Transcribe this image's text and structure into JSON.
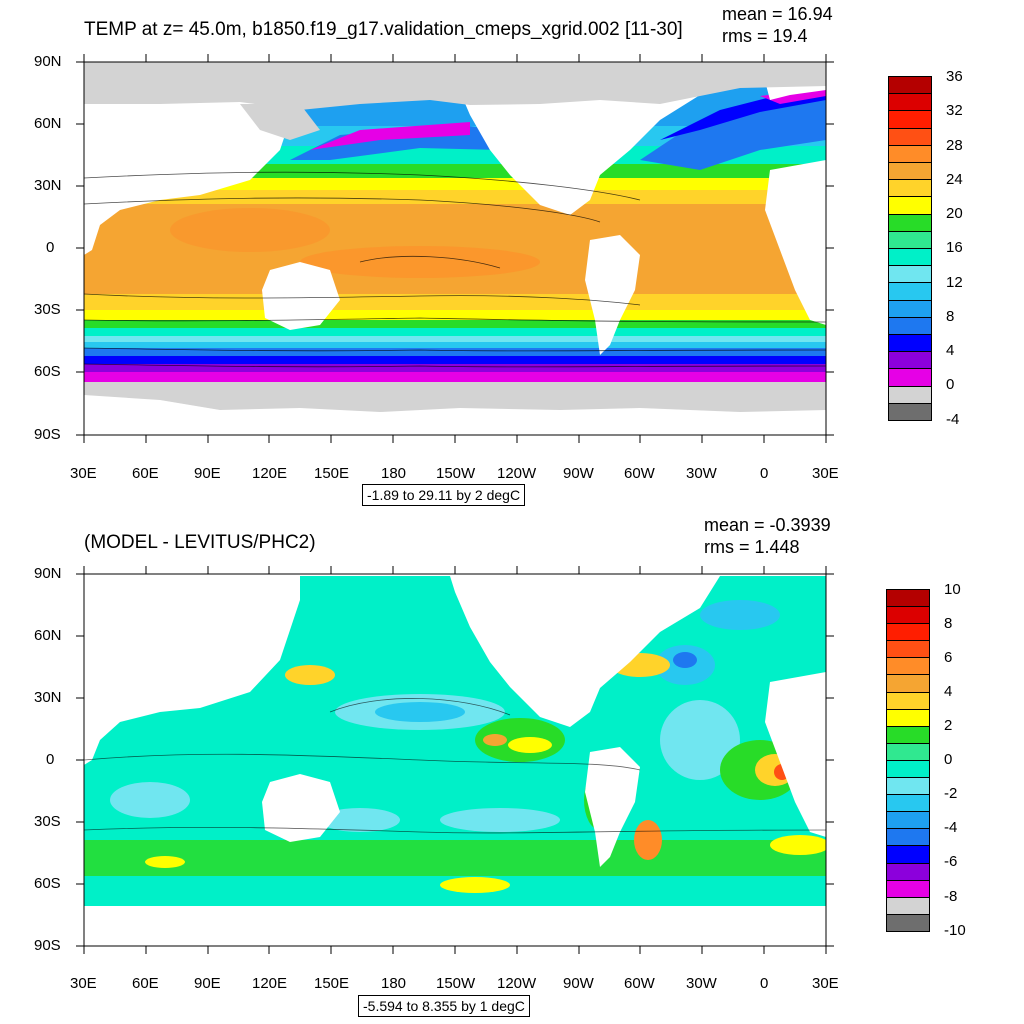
{
  "colors": {
    "land_mask": "#d3d3d3",
    "frame": "#000000",
    "temp_palette": [
      "#6e6e6e",
      "#d3d3d3",
      "#e600e6",
      "#8c00dc",
      "#0000ff",
      "#1e78f0",
      "#1ea0f0",
      "#28c8f0",
      "#70e6f0",
      "#00f0c8",
      "#30e890",
      "#28dc28",
      "#ffff00",
      "#ffd32a",
      "#f5a532",
      "#ff8c28",
      "#ff5014",
      "#ff1e00",
      "#dc0000",
      "#b40000"
    ],
    "diff_palette": [
      "#6e6e6e",
      "#d3d3d3",
      "#e600e6",
      "#8c00dc",
      "#0000ff",
      "#1e78f0",
      "#1ea0f0",
      "#28c8f0",
      "#70e6f0",
      "#00f0c8",
      "#30e890",
      "#28dc28",
      "#ffff00",
      "#ffd32a",
      "#f5a532",
      "#ff8c28",
      "#ff5014",
      "#ff1e00",
      "#dc0000",
      "#b40000"
    ]
  },
  "axes": {
    "lon_labels": [
      "30E",
      "60E",
      "90E",
      "120E",
      "150E",
      "180",
      "150W",
      "120W",
      "90W",
      "60W",
      "30W",
      "0",
      "30E"
    ],
    "lat_labels": [
      "90N",
      "60N",
      "30N",
      "0",
      "30S",
      "60S",
      "90S"
    ]
  },
  "panels": [
    {
      "title": "TEMP at z=  45.0m, b1850.f19_g17.validation_cmeps_xgrid.002 [11-30]",
      "mean": "mean = 16.94",
      "rms": "rms = 19.4",
      "range": "-1.89 to 29.11 by 2 degC",
      "colorbar_labels": [
        "36",
        "32",
        "28",
        "24",
        "20",
        "16",
        "12",
        "8",
        "4",
        "0",
        "-4"
      ],
      "field": "temperature"
    },
    {
      "title": "(MODEL - LEVITUS/PHC2)",
      "mean": "mean = -0.3939",
      "rms": "rms = 1.448",
      "range": "-5.594 to 8.355 by 1 degC",
      "colorbar_labels": [
        "10",
        "8",
        "6",
        "4",
        "2",
        "0",
        "-2",
        "-4",
        "-6",
        "-8",
        "-10"
      ],
      "field": "difference"
    }
  ]
}
